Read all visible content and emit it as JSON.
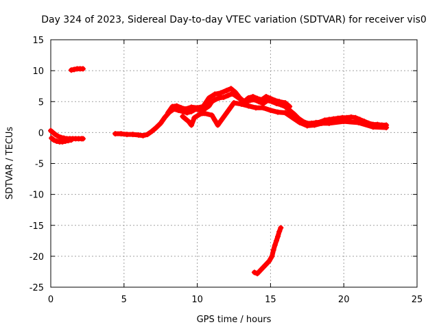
{
  "chart_data": {
    "type": "scatter",
    "title": "Day 324 of 2023, Sidereal Day-to-day VTEC variation (SDTVAR) for receiver vis0",
    "xlabel": "GPS time / hours",
    "ylabel": "SDTVAR / TECUs",
    "xlim": [
      0,
      25
    ],
    "ylim": [
      -25,
      15
    ],
    "x_ticks": [
      0,
      5,
      10,
      15,
      20,
      25
    ],
    "y_ticks": [
      -25,
      -20,
      -15,
      -10,
      -5,
      0,
      5,
      10,
      15
    ],
    "grid": true,
    "legend": "none",
    "series": [
      {
        "name": "segment-early",
        "color": "#ff0000",
        "points": [
          [
            0.0,
            0.3
          ],
          [
            0.15,
            0.0
          ],
          [
            0.3,
            -0.3
          ],
          [
            0.5,
            -0.6
          ],
          [
            0.7,
            -0.8
          ],
          [
            0.9,
            -0.9
          ],
          [
            1.1,
            -1.0
          ],
          [
            1.3,
            -1.0
          ],
          [
            1.5,
            -1.0
          ],
          [
            1.7,
            -1.0
          ],
          [
            1.9,
            -1.0
          ],
          [
            2.1,
            -1.0
          ],
          [
            2.2,
            -1.0
          ]
        ]
      },
      {
        "name": "segment-early-lower",
        "color": "#ff0000",
        "points": [
          [
            0.05,
            -0.9
          ],
          [
            0.2,
            -1.2
          ],
          [
            0.4,
            -1.4
          ],
          [
            0.6,
            -1.5
          ],
          [
            0.8,
            -1.5
          ],
          [
            1.0,
            -1.4
          ],
          [
            1.2,
            -1.3
          ],
          [
            1.4,
            -1.2
          ]
        ]
      },
      {
        "name": "segment-high",
        "color": "#ff0000",
        "points": [
          [
            1.4,
            10.1
          ],
          [
            1.6,
            10.2
          ],
          [
            1.8,
            10.3
          ],
          [
            2.0,
            10.3
          ],
          [
            2.2,
            10.3
          ]
        ]
      },
      {
        "name": "segment-main",
        "color": "#ff0000",
        "points": [
          [
            4.4,
            -0.2
          ],
          [
            4.8,
            -0.2
          ],
          [
            5.2,
            -0.3
          ],
          [
            5.6,
            -0.3
          ],
          [
            6.0,
            -0.4
          ],
          [
            6.3,
            -0.5
          ],
          [
            6.6,
            -0.3
          ],
          [
            6.9,
            0.2
          ],
          [
            7.2,
            0.8
          ],
          [
            7.5,
            1.5
          ],
          [
            7.8,
            2.5
          ],
          [
            8.1,
            3.3
          ],
          [
            8.4,
            3.8
          ],
          [
            8.7,
            3.6
          ],
          [
            9.0,
            3.4
          ],
          [
            9.3,
            3.2
          ],
          [
            9.6,
            3.4
          ],
          [
            9.9,
            3.8
          ],
          [
            10.2,
            3.6
          ],
          [
            10.5,
            3.8
          ],
          [
            10.8,
            4.3
          ],
          [
            11.0,
            5.0
          ],
          [
            11.2,
            5.3
          ],
          [
            11.5,
            5.6
          ],
          [
            11.8,
            5.7
          ],
          [
            12.1,
            6.0
          ],
          [
            12.4,
            6.3
          ],
          [
            12.7,
            5.8
          ],
          [
            13.0,
            5.3
          ],
          [
            13.3,
            5.0
          ],
          [
            13.6,
            5.2
          ],
          [
            13.9,
            5.3
          ],
          [
            14.2,
            5.0
          ],
          [
            14.5,
            4.7
          ],
          [
            14.8,
            5.2
          ],
          [
            15.1,
            5.0
          ],
          [
            15.4,
            4.7
          ],
          [
            15.7,
            4.5
          ],
          [
            16.0,
            4.2
          ],
          [
            16.3,
            3.6
          ],
          [
            16.6,
            3.0
          ],
          [
            16.9,
            2.3
          ],
          [
            17.2,
            1.8
          ],
          [
            17.5,
            1.5
          ],
          [
            17.8,
            1.5
          ],
          [
            18.1,
            1.6
          ],
          [
            18.4,
            1.7
          ],
          [
            18.7,
            2.0
          ],
          [
            19.0,
            2.1
          ],
          [
            19.3,
            2.2
          ],
          [
            19.6,
            2.3
          ],
          [
            19.9,
            2.4
          ],
          [
            20.2,
            2.4
          ],
          [
            20.5,
            2.5
          ],
          [
            20.8,
            2.4
          ],
          [
            21.1,
            2.1
          ],
          [
            21.4,
            1.8
          ],
          [
            21.7,
            1.5
          ],
          [
            22.0,
            1.3
          ],
          [
            22.3,
            1.3
          ],
          [
            22.6,
            1.2
          ],
          [
            22.9,
            1.2
          ]
        ]
      },
      {
        "name": "segment-main-upper",
        "color": "#ff0000",
        "points": [
          [
            8.0,
            3.2
          ],
          [
            8.3,
            4.2
          ],
          [
            8.6,
            4.3
          ],
          [
            8.9,
            4.0
          ],
          [
            9.2,
            3.8
          ],
          [
            9.6,
            4.1
          ],
          [
            10.0,
            4.0
          ],
          [
            10.4,
            4.2
          ],
          [
            10.8,
            5.6
          ],
          [
            11.2,
            6.2
          ],
          [
            11.6,
            6.4
          ],
          [
            12.0,
            6.8
          ],
          [
            12.3,
            7.1
          ],
          [
            12.6,
            6.5
          ],
          [
            12.9,
            5.6
          ],
          [
            13.2,
            5.0
          ],
          [
            13.5,
            5.6
          ],
          [
            13.8,
            5.8
          ],
          [
            14.1,
            5.5
          ],
          [
            14.4,
            5.3
          ],
          [
            14.7,
            5.8
          ],
          [
            15.0,
            5.5
          ],
          [
            15.3,
            5.2
          ],
          [
            15.6,
            5.0
          ],
          [
            16.0,
            4.8
          ],
          [
            16.3,
            4.2
          ]
        ]
      },
      {
        "name": "segment-main-lower",
        "color": "#ff0000",
        "points": [
          [
            9.0,
            2.6
          ],
          [
            9.2,
            2.2
          ],
          [
            9.4,
            1.8
          ],
          [
            9.6,
            1.2
          ],
          [
            9.8,
            2.4
          ],
          [
            10.2,
            3.0
          ],
          [
            10.5,
            3.1
          ],
          [
            11.0,
            2.8
          ],
          [
            11.2,
            2.0
          ],
          [
            11.4,
            1.2
          ],
          [
            12.5,
            4.8
          ],
          [
            13.0,
            4.6
          ],
          [
            13.5,
            4.3
          ],
          [
            14.0,
            4.0
          ],
          [
            14.5,
            4.0
          ],
          [
            15.0,
            3.6
          ],
          [
            15.5,
            3.3
          ],
          [
            16.0,
            3.2
          ],
          [
            16.5,
            2.4
          ],
          [
            17.0,
            1.6
          ],
          [
            17.5,
            1.1
          ],
          [
            18.0,
            1.2
          ],
          [
            18.5,
            1.5
          ],
          [
            19.0,
            1.5
          ],
          [
            20.0,
            1.8
          ],
          [
            21.0,
            1.6
          ],
          [
            22.0,
            0.9
          ],
          [
            22.9,
            0.8
          ]
        ]
      },
      {
        "name": "segment-low",
        "color": "#ff0000",
        "points": [
          [
            13.9,
            -22.6
          ],
          [
            14.1,
            -22.8
          ],
          [
            14.3,
            -22.3
          ],
          [
            14.5,
            -21.8
          ],
          [
            14.7,
            -21.3
          ],
          [
            14.9,
            -20.8
          ],
          [
            15.1,
            -20.0
          ],
          [
            15.2,
            -19.0
          ],
          [
            15.3,
            -18.2
          ],
          [
            15.4,
            -17.5
          ],
          [
            15.5,
            -16.8
          ],
          [
            15.6,
            -16.0
          ],
          [
            15.7,
            -15.4
          ]
        ]
      }
    ]
  }
}
